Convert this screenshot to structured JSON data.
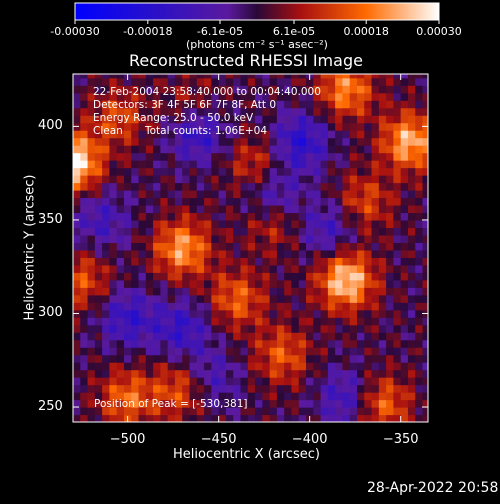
{
  "colorbar": {
    "tick_labels": [
      "-0.00030",
      "-0.00018",
      "-6.1e-05",
      "6.1e-05",
      "0.00018",
      "0.00030"
    ],
    "tick_values": [
      -0.0003,
      -0.00018,
      -6.1e-05,
      6.1e-05,
      0.00018,
      0.0003
    ],
    "range": [
      -0.0003,
      0.0003
    ],
    "units_label": "(photons cm⁻² s⁻¹ asec⁻²)"
  },
  "chart_data": {
    "type": "heatmap",
    "title": "Reconstructed RHESSI Image",
    "xlabel": "Heliocentric X (arcsec)",
    "ylabel": "Heliocentric Y (arcsec)",
    "xlim": [
      -530,
      -335
    ],
    "ylim": [
      242,
      428
    ],
    "x_ticks": [
      -500,
      -450,
      -400,
      -350
    ],
    "x_tick_labels": [
      "−500",
      "−450",
      "−400",
      "−350"
    ],
    "y_ticks": [
      250,
      300,
      350,
      400
    ],
    "y_tick_labels": [
      "250",
      "300",
      "350",
      "400"
    ],
    "peak_position": [
      -530,
      381
    ],
    "hot_spots": [
      {
        "x": -530,
        "y": 381,
        "level": 0.0003
      },
      {
        "x": -380,
        "y": 318,
        "level": 0.00027
      },
      {
        "x": -345,
        "y": 392,
        "level": 0.00024
      },
      {
        "x": -470,
        "y": 335,
        "level": 0.00022
      },
      {
        "x": -380,
        "y": 420,
        "level": 0.0002
      },
      {
        "x": -500,
        "y": 255,
        "level": 0.00017
      },
      {
        "x": -470,
        "y": 260,
        "level": 0.00016
      },
      {
        "x": -440,
        "y": 308,
        "level": 0.00016
      },
      {
        "x": -415,
        "y": 278,
        "level": 0.00015
      },
      {
        "x": -360,
        "y": 252,
        "level": 0.00017
      },
      {
        "x": -525,
        "y": 318,
        "level": 0.00014
      },
      {
        "x": -420,
        "y": 350,
        "level": 0.00013
      },
      {
        "x": -430,
        "y": 380,
        "level": 0.00012
      },
      {
        "x": -370,
        "y": 360,
        "level": 0.00013
      },
      {
        "x": -505,
        "y": 405,
        "level": 0.00013
      },
      {
        "x": -465,
        "y": 410,
        "level": 0.00011
      }
    ],
    "cold_spots": [
      {
        "x": -462,
        "y": 398,
        "level": -0.00018
      },
      {
        "x": -405,
        "y": 392,
        "level": -0.00017
      },
      {
        "x": -420,
        "y": 362,
        "level": -0.00015
      },
      {
        "x": -500,
        "y": 298,
        "level": -0.00014
      },
      {
        "x": -470,
        "y": 292,
        "level": -0.00014
      },
      {
        "x": -390,
        "y": 345,
        "level": -0.00012
      },
      {
        "x": -455,
        "y": 265,
        "level": -0.00012
      },
      {
        "x": -380,
        "y": 255,
        "level": -0.00013
      },
      {
        "x": -515,
        "y": 350,
        "level": -0.00011
      }
    ]
  },
  "annotation": {
    "line1": "22-Feb-2004 23:58:40.000 to 00:04:40.000",
    "line2": "Detectors: 3F 4F 5F 6F 7F 8F, Att 0",
    "line3": "Energy Range: 25.0 - 50.0 keV",
    "line4_method": "Clean",
    "line4_counts": "Total counts: 1.06E+04",
    "peak_text": "Position of Peak = [-530,381]"
  },
  "timestamp": "28-Apr-2022 20:58"
}
